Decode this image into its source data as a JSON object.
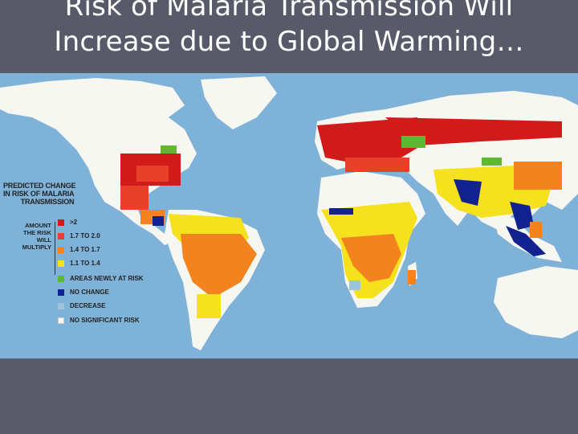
{
  "slide": {
    "title_line1": "Risk of Malaria Transmission Will",
    "title_line2": "Increase due to Global Warming…"
  },
  "legend": {
    "title_line1": "PREDICTED CHANGE",
    "title_line2": "IN RISK OF MALARIA",
    "title_line3": "TRANSMISSION",
    "amount_label_line1": "AMOUNT",
    "amount_label_line2": "THE RISK",
    "amount_label_line3": "WILL",
    "amount_label_line4": "MULTIPLY",
    "items": [
      {
        "label": ">2",
        "color": "#d11a1a"
      },
      {
        "label": "1.7 TO 2.0",
        "color": "#e8412a"
      },
      {
        "label": "1.4 TO 1.7",
        "color": "#f2831f"
      },
      {
        "label": "1.1 TO 1.4",
        "color": "#f5e11e"
      },
      {
        "label": "AREAS NEWLY AT RISK",
        "color": "#5fb833"
      },
      {
        "label": "NO CHANGE",
        "color": "#12238f"
      },
      {
        "label": "DECREASE",
        "color": "#9ec4dc"
      },
      {
        "label": "NO SIGNIFICANT RISK",
        "color": "#f7f7f2"
      }
    ]
  },
  "colors": {
    "background": "#585a69",
    "ocean": "#7fb2d8",
    "land": "#f7f7f2"
  }
}
